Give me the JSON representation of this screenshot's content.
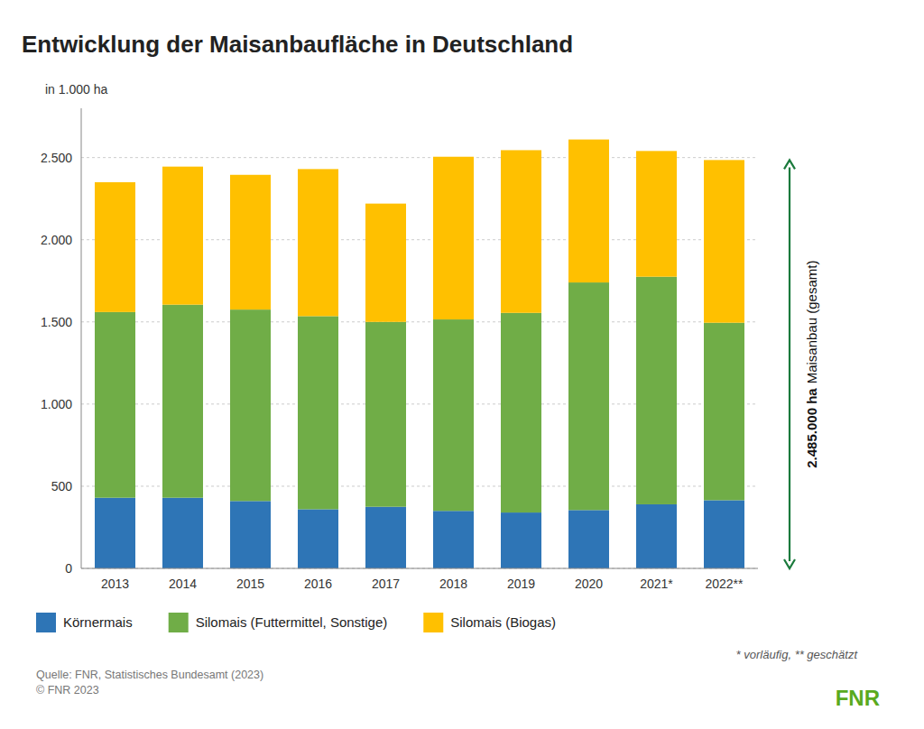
{
  "chart_data": {
    "type": "bar",
    "stacked": true,
    "title": "Entwicklung der Maisanbaufläche in Deutschland",
    "ylabel": "in 1.000 ha",
    "categories": [
      "2013",
      "2014",
      "2015",
      "2016",
      "2017",
      "2018",
      "2019",
      "2020",
      "2021*",
      "2022**"
    ],
    "series": [
      {
        "name": "Körnermais",
        "color": "#2e75b6",
        "values": [
          430,
          430,
          410,
          360,
          375,
          350,
          340,
          355,
          390,
          415
        ]
      },
      {
        "name": "Silomais (Futtermittel, Sonstige)",
        "color": "#70ad47",
        "values": [
          1130,
          1175,
          1165,
          1175,
          1125,
          1165,
          1215,
          1385,
          1385,
          1080
        ]
      },
      {
        "name": "Silomais (Biogas)",
        "color": "#ffc000",
        "values": [
          790,
          840,
          820,
          895,
          720,
          990,
          990,
          870,
          765,
          990
        ]
      }
    ],
    "ylim": [
      0,
      2800
    ],
    "yticks": [
      0,
      500,
      {
        "value": 1000,
        "label": "1.000"
      },
      {
        "value": 1500,
        "label": "1.500"
      },
      {
        "value": 2000,
        "label": "2.000"
      },
      {
        "value": 2500,
        "label": "2.500"
      }
    ],
    "grid": true,
    "legend": "bottom",
    "annotation": {
      "value": 2485,
      "label": "2.485.000 ha",
      "text": "Maisanbau (gesamt)"
    },
    "footnote": "* vorläufig, ** geschätzt",
    "source": [
      "Quelle: FNR, Statistisches Bundesamt (2023)",
      "© FNR 2023"
    ],
    "logo": "FNR"
  }
}
